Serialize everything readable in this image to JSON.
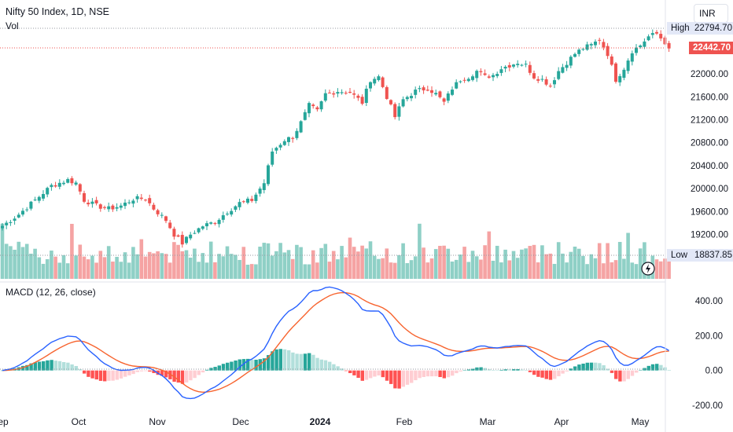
{
  "header": {
    "title": "Nifty 50 Index, 1D, NSE",
    "vol_label": "Vol"
  },
  "currency": "INR",
  "macd_label": "MACD (12, 26, close)",
  "tags": {
    "high_label": "High",
    "high_value": "22794.70",
    "low_label": "Low",
    "low_value": "18837.85",
    "last_value": "22442.70"
  },
  "price_axis": [
    "22000.00",
    "21600.00",
    "21200.00",
    "20800.00",
    "20400.00",
    "20000.00",
    "19600.00",
    "19200.00"
  ],
  "macd_axis": [
    "400.00",
    "200.00",
    "0.00",
    "-200.00"
  ],
  "time_axis": [
    "Sep",
    "Oct",
    "Nov",
    "Dec",
    "2024",
    "Feb",
    "Mar",
    "Apr",
    "May"
  ],
  "colors": {
    "up": "#26a69a",
    "down": "#ef5350",
    "vol_up": "#8fd0c6",
    "vol_down": "#f5a3a3",
    "macd": "#2962ff",
    "signal": "#f7642f",
    "hist_up_strong": "#26a69a",
    "hist_up_weak": "#b2dfdb",
    "hist_down_strong": "#ff5252",
    "hist_down_weak": "#ffcdd2"
  },
  "chart_data": {
    "type": "candlestick",
    "title": "Nifty 50 Index, 1D, NSE",
    "price_range": [
      18837.85,
      22794.7
    ],
    "ylim": [
      18700,
      22900
    ],
    "macd_ylim": [
      -230,
      480
    ],
    "close_waypoints": [
      [
        0,
        19350
      ],
      [
        4,
        19550
      ],
      [
        8,
        19800
      ],
      [
        12,
        20050
      ],
      [
        16,
        20150
      ],
      [
        18,
        20100
      ],
      [
        20,
        19800
      ],
      [
        23,
        19700
      ],
      [
        26,
        19650
      ],
      [
        29,
        19700
      ],
      [
        32,
        19820
      ],
      [
        35,
        19830
      ],
      [
        37,
        19650
      ],
      [
        40,
        19450
      ],
      [
        42,
        19200
      ],
      [
        44,
        19050
      ],
      [
        46,
        19200
      ],
      [
        49,
        19350
      ],
      [
        52,
        19420
      ],
      [
        55,
        19600
      ],
      [
        58,
        19750
      ],
      [
        61,
        19800
      ],
      [
        64,
        20100
      ],
      [
        66,
        20650
      ],
      [
        69,
        20850
      ],
      [
        71,
        20900
      ],
      [
        73,
        21150
      ],
      [
        75,
        21450
      ],
      [
        77,
        21350
      ],
      [
        79,
        21650
      ],
      [
        82,
        21700
      ],
      [
        85,
        21680
      ],
      [
        88,
        21500
      ],
      [
        90,
        21900
      ],
      [
        92,
        21950
      ],
      [
        94,
        21600
      ],
      [
        96,
        21250
      ],
      [
        98,
        21550
      ],
      [
        101,
        21700
      ],
      [
        104,
        21750
      ],
      [
        106,
        21650
      ],
      [
        108,
        21500
      ],
      [
        110,
        21750
      ],
      [
        112,
        21900
      ],
      [
        114,
        21950
      ],
      [
        116,
        22050
      ],
      [
        118,
        21950
      ],
      [
        120,
        21980
      ],
      [
        122,
        22100
      ],
      [
        124,
        22150
      ],
      [
        126,
        22200
      ],
      [
        128,
        22150
      ],
      [
        130,
        21950
      ],
      [
        132,
        21900
      ],
      [
        134,
        21800
      ],
      [
        136,
        22050
      ],
      [
        138,
        22200
      ],
      [
        140,
        22350
      ],
      [
        142,
        22450
      ],
      [
        144,
        22500
      ],
      [
        146,
        22600
      ],
      [
        148,
        22350
      ],
      [
        150,
        21900
      ],
      [
        152,
        22100
      ],
      [
        154,
        22400
      ],
      [
        156,
        22500
      ],
      [
        158,
        22650
      ],
      [
        160,
        22700
      ],
      [
        162,
        22550
      ],
      [
        163,
        22450
      ]
    ],
    "high": 22794.7,
    "low": 18837.85,
    "last": 22442.7
  }
}
